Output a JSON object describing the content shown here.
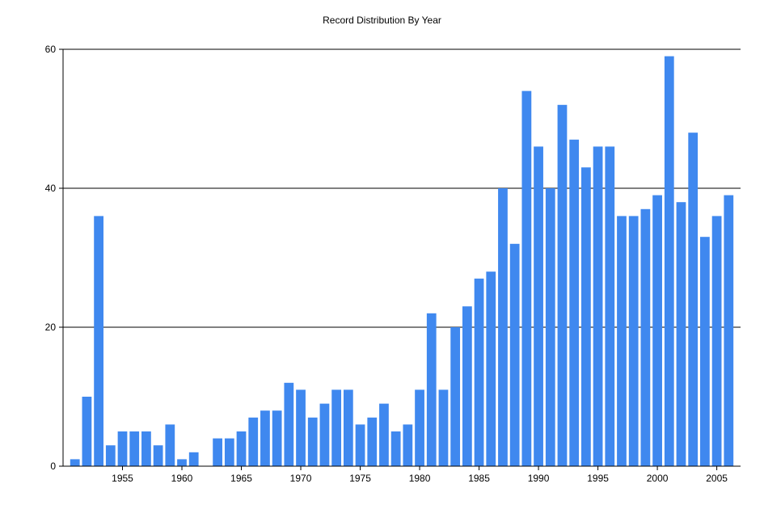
{
  "chart_data": {
    "type": "bar",
    "title": "Record Distribution By Year",
    "xlabel": "",
    "ylabel": "",
    "ylim": [
      0,
      60
    ],
    "yticks": [
      0,
      20,
      40,
      60
    ],
    "xlim": [
      1950,
      2007
    ],
    "xticks": [
      1955,
      1960,
      1965,
      1970,
      1975,
      1980,
      1985,
      1990,
      1995,
      2000,
      2005
    ],
    "grid": "horizontal",
    "legend": "none",
    "bar_color": "#3F88EF",
    "x": [
      1951,
      1952,
      1953,
      1954,
      1955,
      1956,
      1957,
      1958,
      1959,
      1960,
      1961,
      1962,
      1963,
      1964,
      1965,
      1966,
      1967,
      1968,
      1969,
      1970,
      1971,
      1972,
      1973,
      1974,
      1975,
      1976,
      1977,
      1978,
      1979,
      1980,
      1981,
      1982,
      1983,
      1984,
      1985,
      1986,
      1987,
      1988,
      1989,
      1990,
      1991,
      1992,
      1993,
      1994,
      1995,
      1996,
      1997,
      1998,
      1999,
      2000,
      2001,
      2002,
      2003,
      2004,
      2005,
      2006
    ],
    "values": [
      1,
      10,
      36,
      3,
      5,
      5,
      5,
      3,
      6,
      1,
      2,
      0,
      4,
      4,
      5,
      7,
      8,
      8,
      12,
      11,
      7,
      9,
      11,
      11,
      6,
      7,
      9,
      5,
      6,
      11,
      22,
      11,
      20,
      23,
      27,
      28,
      40,
      32,
      54,
      46,
      40,
      52,
      47,
      43,
      46,
      46,
      36,
      36,
      37,
      39,
      59,
      38,
      48,
      33,
      36,
      39
    ]
  }
}
